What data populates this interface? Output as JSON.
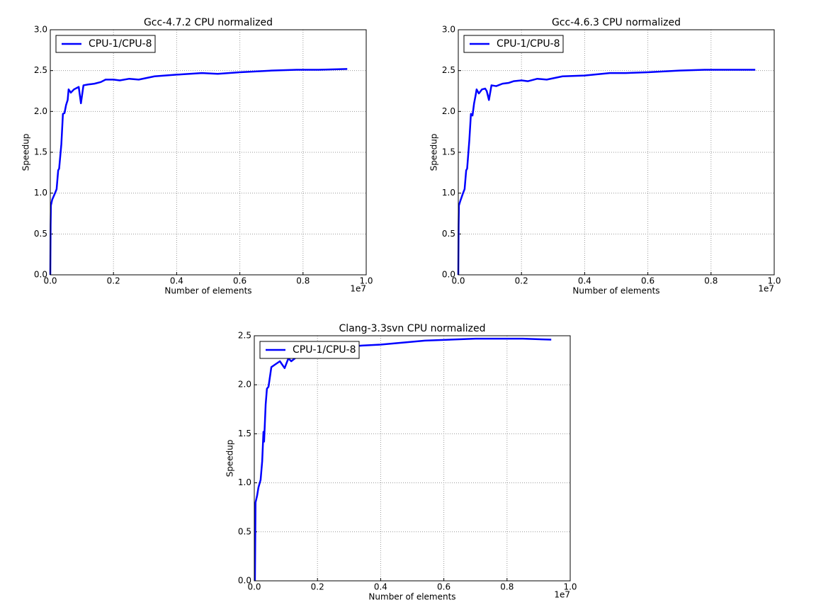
{
  "chart_data": [
    {
      "type": "line",
      "title": "Gcc-4.7.2 CPU normalized",
      "xlabel": "Number of elements",
      "ylabel": "Speedup",
      "x_offset_label": "1e7",
      "x": [
        0,
        0.001,
        0.002,
        0.006,
        0.015,
        0.02,
        0.025,
        0.028,
        0.035,
        0.04,
        0.045,
        0.05,
        0.055,
        0.058,
        0.065,
        0.075,
        0.085,
        0.09,
        0.097,
        0.105,
        0.12,
        0.14,
        0.16,
        0.175,
        0.2,
        0.22,
        0.25,
        0.28,
        0.33,
        0.4,
        0.48,
        0.53,
        0.6,
        0.7,
        0.78,
        0.85,
        0.94
      ],
      "series": [
        {
          "name": "CPU-1/CPU-8",
          "color": "#0000ff",
          "values": [
            0,
            0.6,
            0.85,
            0.92,
            1.0,
            1.05,
            1.28,
            1.3,
            1.6,
            1.97,
            1.98,
            2.08,
            2.14,
            2.27,
            2.23,
            2.27,
            2.29,
            2.3,
            2.1,
            2.32,
            2.33,
            2.34,
            2.36,
            2.39,
            2.39,
            2.38,
            2.4,
            2.39,
            2.43,
            2.45,
            2.47,
            2.46,
            2.48,
            2.5,
            2.51,
            2.51,
            2.52
          ]
        }
      ],
      "xlim": [
        0,
        1
      ],
      "ylim": [
        0,
        3
      ],
      "xticks": [
        {
          "value": 0,
          "label": "0.0"
        },
        0.2,
        0.4,
        0.6,
        0.8,
        {
          "value": 1,
          "label": "1.0"
        }
      ],
      "yticks": [
        {
          "value": 0,
          "label": "0.0"
        },
        0.5,
        {
          "value": 1,
          "label": "1.0"
        },
        1.5,
        {
          "value": 2,
          "label": "2.0"
        },
        2.5,
        {
          "value": 3,
          "label": "3.0"
        }
      ],
      "grid": true,
      "legend": "upper left"
    },
    {
      "type": "line",
      "title": "Gcc-4.6.3 CPU normalized",
      "xlabel": "Number of elements",
      "ylabel": "Speedup",
      "x_offset_label": "1e7",
      "x": [
        0,
        0.001,
        0.002,
        0.006,
        0.015,
        0.02,
        0.025,
        0.028,
        0.035,
        0.04,
        0.045,
        0.05,
        0.055,
        0.058,
        0.065,
        0.075,
        0.085,
        0.09,
        0.097,
        0.105,
        0.12,
        0.14,
        0.16,
        0.175,
        0.2,
        0.22,
        0.25,
        0.28,
        0.33,
        0.4,
        0.48,
        0.53,
        0.6,
        0.7,
        0.78,
        0.85,
        0.94
      ],
      "series": [
        {
          "name": "CPU-1/CPU-8",
          "color": "#0000ff",
          "values": [
            0,
            0.6,
            0.85,
            0.9,
            1.0,
            1.05,
            1.28,
            1.3,
            1.65,
            1.97,
            1.95,
            2.1,
            2.2,
            2.27,
            2.22,
            2.27,
            2.28,
            2.25,
            2.14,
            2.32,
            2.31,
            2.34,
            2.35,
            2.37,
            2.38,
            2.37,
            2.4,
            2.39,
            2.43,
            2.44,
            2.47,
            2.47,
            2.48,
            2.5,
            2.51,
            2.51,
            2.51
          ]
        }
      ],
      "xlim": [
        0,
        1
      ],
      "ylim": [
        0,
        3
      ],
      "xticks": [
        {
          "value": 0,
          "label": "0.0"
        },
        0.2,
        0.4,
        0.6,
        0.8,
        {
          "value": 1,
          "label": "1.0"
        }
      ],
      "yticks": [
        {
          "value": 0,
          "label": "0.0"
        },
        0.5,
        {
          "value": 1,
          "label": "1.0"
        },
        1.5,
        {
          "value": 2,
          "label": "2.0"
        },
        2.5,
        {
          "value": 3,
          "label": "3.0"
        }
      ],
      "grid": true,
      "legend": "upper left"
    },
    {
      "type": "line",
      "title": "Clang-3.3svn CPU normalized",
      "xlabel": "Number of elements",
      "ylabel": "Speedup",
      "x_offset_label": "1e7",
      "x": [
        0.002,
        0.004,
        0.009,
        0.013,
        0.02,
        0.025,
        0.029,
        0.031,
        0.036,
        0.04,
        0.045,
        0.054,
        0.063,
        0.081,
        0.096,
        0.108,
        0.117,
        0.137,
        0.18,
        0.25,
        0.34,
        0.4,
        0.54,
        0.7,
        0.76,
        0.85,
        0.94
      ],
      "series": [
        {
          "name": "CPU-1/CPU-8",
          "color": "#0000ff",
          "values": [
            0,
            0.8,
            0.87,
            0.95,
            1.03,
            1.22,
            1.52,
            1.42,
            1.8,
            1.96,
            1.98,
            2.18,
            2.2,
            2.24,
            2.17,
            2.27,
            2.24,
            2.29,
            2.32,
            2.37,
            2.4,
            2.41,
            2.45,
            2.47,
            2.47,
            2.47,
            2.46
          ]
        }
      ],
      "xlim": [
        0,
        1
      ],
      "ylim": [
        0,
        2.5
      ],
      "xticks": [
        {
          "value": 0,
          "label": "0.0"
        },
        0.2,
        0.4,
        0.6,
        0.8,
        {
          "value": 1,
          "label": "1.0"
        }
      ],
      "yticks": [
        {
          "value": 0,
          "label": "0.0"
        },
        0.5,
        {
          "value": 1,
          "label": "1.0"
        },
        1.5,
        {
          "value": 2,
          "label": "2.0"
        },
        2.5
      ],
      "grid": true,
      "legend": "upper left"
    }
  ]
}
